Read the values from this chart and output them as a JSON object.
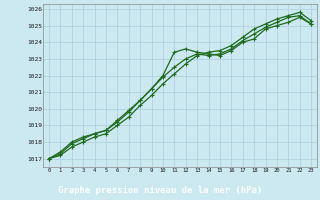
{
  "x_label": "Graphe pression niveau de la mer (hPa)",
  "x_ticks": [
    0,
    1,
    2,
    3,
    4,
    5,
    6,
    7,
    8,
    9,
    10,
    11,
    12,
    13,
    14,
    15,
    16,
    17,
    18,
    19,
    20,
    21,
    22,
    23
  ],
  "ylim": [
    1016.5,
    1026.3
  ],
  "yticks": [
    1017,
    1018,
    1019,
    1020,
    1021,
    1022,
    1023,
    1024,
    1025,
    1026
  ],
  "bg_color": "#cce8f0",
  "grid_color": "#aacfdc",
  "line_color": "#1e6b1e",
  "label_bg": "#2d6e2d",
  "label_fg": "#ffffff",
  "line1": [
    1017.0,
    1017.4,
    1018.0,
    1018.3,
    1018.5,
    1018.7,
    1019.2,
    1019.8,
    1020.5,
    1021.2,
    1022.0,
    1023.4,
    1023.6,
    1023.4,
    1023.3,
    1023.2,
    1023.5,
    1024.0,
    1024.2,
    1024.8,
    1025.0,
    1025.2,
    1025.5,
    1025.1
  ],
  "line2": [
    1017.0,
    1017.3,
    1017.9,
    1018.2,
    1018.5,
    1018.7,
    1019.3,
    1019.9,
    1020.5,
    1021.2,
    1021.9,
    1022.5,
    1023.0,
    1023.3,
    1023.2,
    1023.3,
    1023.6,
    1024.1,
    1024.5,
    1024.9,
    1025.2,
    1025.5,
    1025.6,
    1025.1
  ],
  "line3": [
    1017.0,
    1017.2,
    1017.7,
    1018.0,
    1018.3,
    1018.5,
    1019.0,
    1019.5,
    1020.2,
    1020.8,
    1021.5,
    1022.1,
    1022.7,
    1023.2,
    1023.4,
    1023.5,
    1023.8,
    1024.3,
    1024.8,
    1025.1,
    1025.4,
    1025.6,
    1025.8,
    1025.3
  ]
}
